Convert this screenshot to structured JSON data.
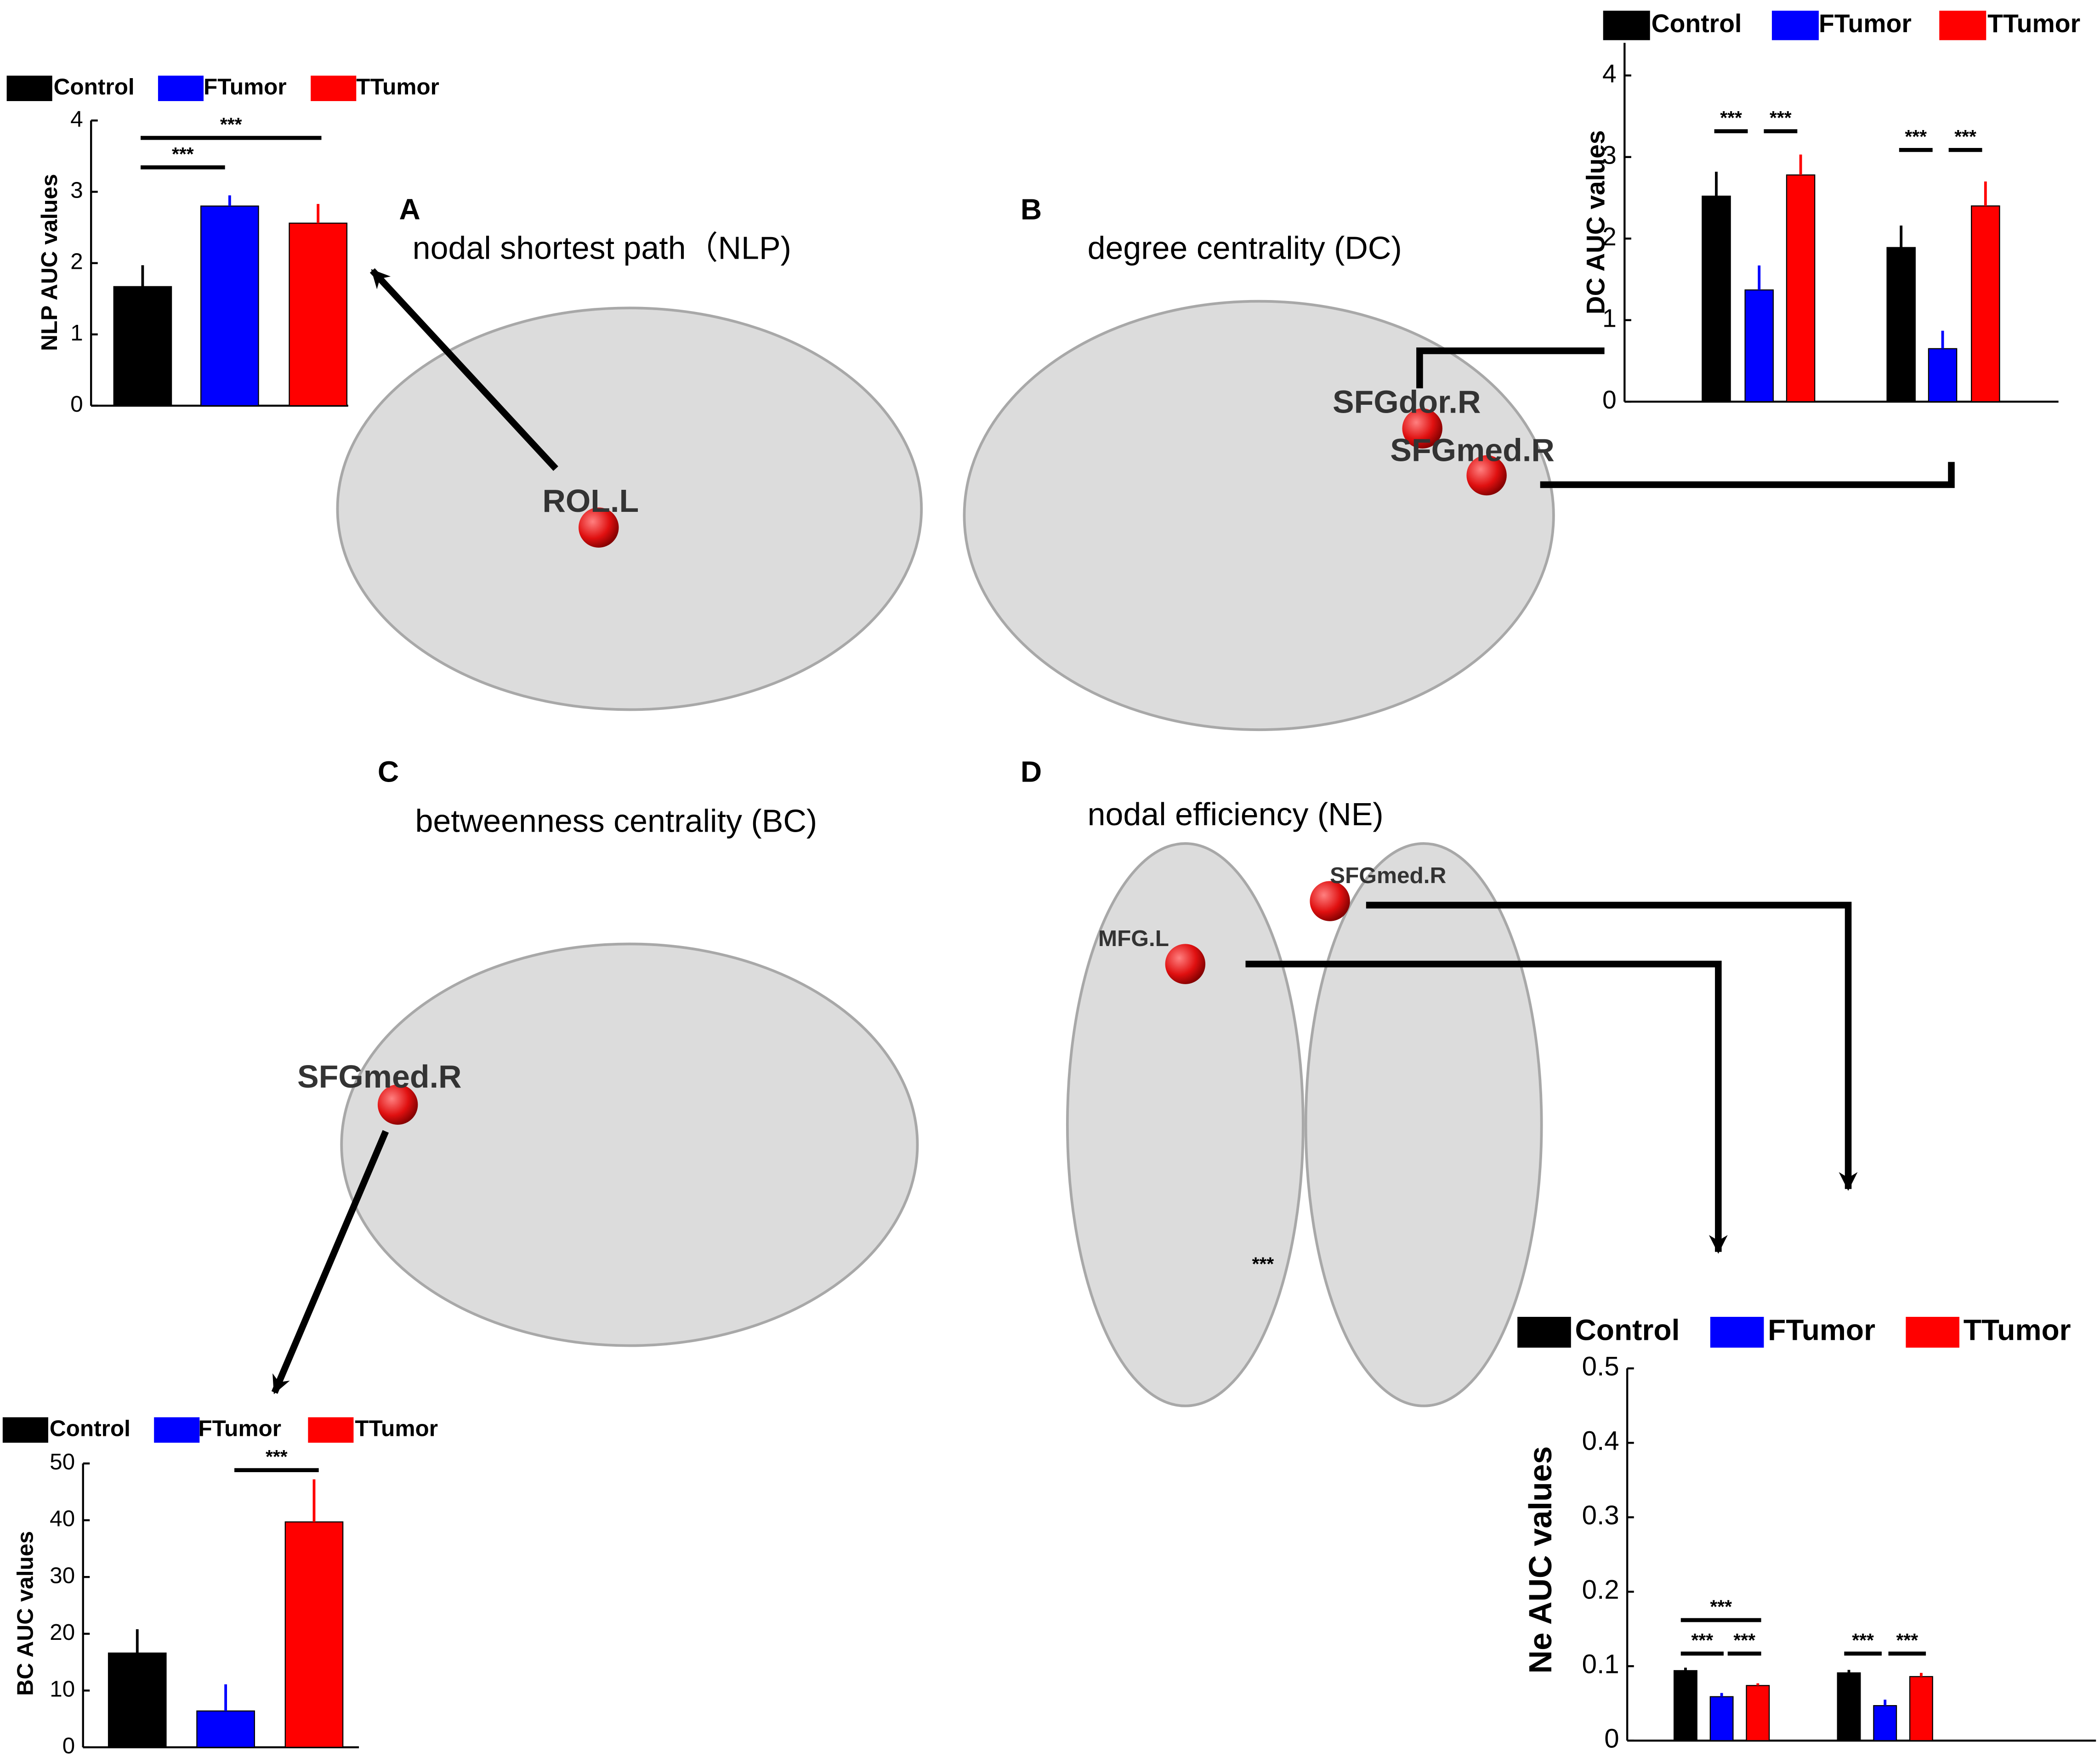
{
  "panels": [
    {
      "letter": "A",
      "title": "nodal shortest path（NLP)",
      "regions": [
        "ROL.L"
      ]
    },
    {
      "letter": "B",
      "title": "degree centrality (DC)",
      "regions": [
        "SFGdor.R",
        "SFGmed.R"
      ]
    },
    {
      "letter": "C",
      "title": "betweenness centrality (BC)",
      "regions": [
        "SFGmed.R"
      ]
    },
    {
      "letter": "D",
      "title": "nodal efficiency (NE)",
      "regions": [
        "SFGmed.R",
        "MFG.L"
      ],
      "note": "***"
    }
  ],
  "chart_data": [
    {
      "type": "bar",
      "ylabel": "NLP AUC values",
      "categories": [
        null
      ],
      "series": [
        {
          "name": "Control",
          "color": "#000000",
          "values": [
            1.67
          ],
          "errors": [
            0.3
          ]
        },
        {
          "name": "FTumor",
          "color": "#0000ff",
          "values": [
            2.8
          ],
          "errors": [
            0.15
          ]
        },
        {
          "name": "TTumor",
          "color": "#ff0000",
          "values": [
            2.56
          ],
          "errors": [
            0.27
          ]
        }
      ],
      "ylim": [
        0,
        4
      ],
      "yticks": [
        0,
        1,
        2,
        3,
        4
      ],
      "annotations": [
        "***",
        "***"
      ]
    },
    {
      "type": "bar",
      "ylabel": "DC AUC values",
      "categories": [
        null,
        null
      ],
      "series": [
        {
          "name": "Control",
          "color": "#000000",
          "values": [
            2.52,
            1.89
          ],
          "errors": [
            0.3,
            0.27
          ]
        },
        {
          "name": "FTumor",
          "color": "#0000ff",
          "values": [
            1.37,
            0.65
          ],
          "errors": [
            0.3,
            0.22
          ]
        },
        {
          "name": "TTumor",
          "color": "#ff0000",
          "values": [
            2.78,
            2.4
          ],
          "errors": [
            0.25,
            0.3
          ]
        }
      ],
      "ylim": [
        0,
        4.4
      ],
      "yticks": [
        0,
        1,
        2,
        3,
        4
      ],
      "annotations": [
        "***",
        "***",
        "***",
        "***"
      ]
    },
    {
      "type": "bar",
      "ylabel": "BC AUC values",
      "categories": [
        null
      ],
      "series": [
        {
          "name": "Control",
          "color": "#000000",
          "values": [
            16.6
          ],
          "errors": [
            4.2
          ]
        },
        {
          "name": "FTumor",
          "color": "#0000ff",
          "values": [
            6.4
          ],
          "errors": [
            4.7
          ]
        },
        {
          "name": "TTumor",
          "color": "#ff0000",
          "values": [
            39.7
          ],
          "errors": [
            7.5
          ]
        }
      ],
      "ylim": [
        0,
        50
      ],
      "yticks": [
        0,
        10,
        20,
        30,
        40,
        50
      ],
      "annotations": [
        "***"
      ]
    },
    {
      "type": "bar",
      "ylabel": "Ne AUC values",
      "categories": [
        null,
        null
      ],
      "series": [
        {
          "name": "Control",
          "color": "#000000",
          "values": [
            0.094,
            0.091
          ],
          "errors": [
            0.004,
            0.004
          ]
        },
        {
          "name": "FTumor",
          "color": "#0000ff",
          "values": [
            0.059,
            0.047
          ],
          "errors": [
            0.005,
            0.008
          ]
        },
        {
          "name": "TTumor",
          "color": "#ff0000",
          "values": [
            0.074,
            0.086
          ],
          "errors": [
            0.003,
            0.005
          ]
        }
      ],
      "ylim": [
        0,
        0.5
      ],
      "yticks": [
        0,
        0.1,
        0.2,
        0.3,
        0.4,
        0.5
      ],
      "annotations": [
        "***",
        "***",
        "***",
        "***",
        "***"
      ]
    }
  ]
}
